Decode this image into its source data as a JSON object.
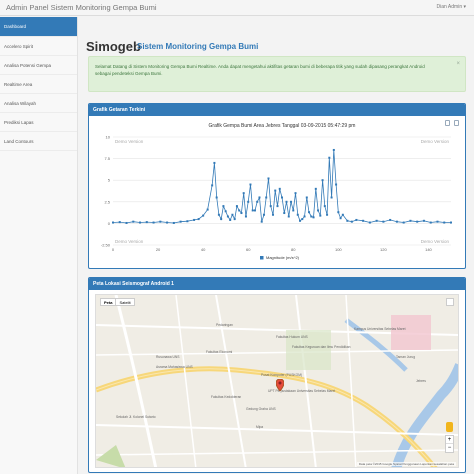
{
  "header": {
    "brand": "Admin Panel Sistem Monitoring Gempa Bumi",
    "user": "Dian Admin ▾"
  },
  "sidebar": {
    "items": [
      {
        "label": "Dashboard",
        "active": true
      },
      {
        "label": "Accelero Spirit"
      },
      {
        "label": "Analisa Potensi Gempa"
      },
      {
        "label": "Realtime Area"
      },
      {
        "label": "Analisa Wilayah"
      },
      {
        "label": "Prediksi Lapas"
      },
      {
        "label": "Land Contours"
      }
    ]
  },
  "page": {
    "title": "Simogeb",
    "subtitle": "Sistem Monitoring Gempa Bumi"
  },
  "alert": {
    "text": "Selamat Datang di Sistem Monitoring Gempa Bumi Realtime. Anda dapat mengetahui aktifitas getaran bumi di beberapa titik yang sudah dipasang perangkat Android sebagai pendeteksi Gempa Bumi.",
    "close": "×"
  },
  "panels": {
    "chart": "Grafik Getaran Terkini",
    "map": "Peta Lokasi Seismograf Android 1"
  },
  "chart_data": {
    "type": "line",
    "title": "Grafik Gempa Bumi Area Jebres Tanggal 03-09-2015 05:47:29 pm",
    "xlabel": "",
    "ylabel": "",
    "legend": "Magnitude (m/s^2)",
    "legend_position": "bottom",
    "watermark": "Demo Version",
    "color": "#337ab7",
    "xlim": [
      0,
      150
    ],
    "ylim": [
      -2.5,
      10
    ],
    "xticks": [
      0,
      20,
      40,
      60,
      80,
      100,
      120,
      140
    ],
    "yticks": [
      10,
      7.5,
      5,
      2.5,
      0,
      -2.5
    ],
    "ytick_labels": [
      "10",
      "7.5",
      "5",
      "2.5",
      "0",
      "-2.50"
    ],
    "x": [
      0,
      3,
      6,
      9,
      12,
      15,
      18,
      21,
      24,
      27,
      30,
      33,
      36,
      38,
      40,
      42,
      44,
      45,
      46,
      47,
      48,
      49,
      50,
      51,
      52,
      53,
      54,
      55,
      56,
      57,
      58,
      59,
      60,
      61,
      62,
      63,
      64,
      65,
      66,
      67,
      68,
      69,
      70,
      71,
      72,
      73,
      74,
      75,
      76,
      77,
      78,
      79,
      80,
      81,
      82,
      83,
      84,
      85,
      86,
      87,
      88,
      89,
      90,
      91,
      92,
      93,
      94,
      95,
      96,
      97,
      98,
      99,
      100,
      101,
      102,
      104,
      106,
      108,
      111,
      114,
      117,
      120,
      123,
      126,
      129,
      132,
      135,
      138,
      141,
      144,
      147,
      150
    ],
    "y": [
      0.1,
      0.15,
      0.05,
      0.2,
      0.1,
      0.15,
      0.1,
      0.2,
      0.1,
      0.05,
      0.2,
      0.25,
      0.4,
      0.5,
      0.9,
      1.6,
      4.4,
      7.0,
      3.0,
      1.0,
      0.5,
      2.0,
      1.4,
      0.8,
      0.4,
      1.0,
      0.5,
      2.0,
      1.5,
      1.2,
      3.5,
      0.8,
      2.5,
      4.5,
      1.5,
      1.5,
      2.5,
      3.0,
      0.2,
      1.0,
      3.0,
      5.2,
      2.0,
      1.0,
      3.8,
      2.0,
      4.0,
      3.0,
      1.2,
      2.5,
      0.8,
      2.5,
      1.5,
      3.5,
      1.0,
      0.3,
      0.5,
      0.8,
      3.0,
      1.3,
      0.8,
      0.7,
      4.0,
      1.5,
      0.9,
      5.0,
      2.0,
      1.0,
      7.6,
      3.0,
      8.5,
      4.5,
      1.3,
      0.6,
      1.0,
      0.3,
      0.2,
      0.4,
      0.3,
      0.1,
      0.3,
      0.2,
      0.4,
      0.2,
      0.1,
      0.3,
      0.2,
      0.3,
      0.1,
      0.2,
      0.1,
      0.1
    ]
  },
  "map": {
    "type_map": "Peta",
    "type_sat": "Satelit",
    "zoom_in": "+",
    "zoom_out": "−",
    "footer": "Data peta ©2015 Google   Syarat Penggunaan   Laporkan kesalahan peta",
    "labels": [
      "Pedaringan",
      "Pusat Komputer (PUSKOM)",
      "UPT Perpustakaan Universitas Sebelas Maret",
      "Fakultas Hukum UNS",
      "Fakultas Keguruan dan Ilmu Pendidikan",
      "Fakultas Ekonomi",
      "Fakultas Kedokteran",
      "Gedung Graha UNS",
      "Kampus Universitas Sebelas Maret",
      "Asrama Mahasiswa UNS",
      "Jebres",
      "Sekolah Jl. Kolonel Sutarto",
      "Rusunawa UNS",
      "Mipa",
      "Taman Jurug"
    ]
  }
}
